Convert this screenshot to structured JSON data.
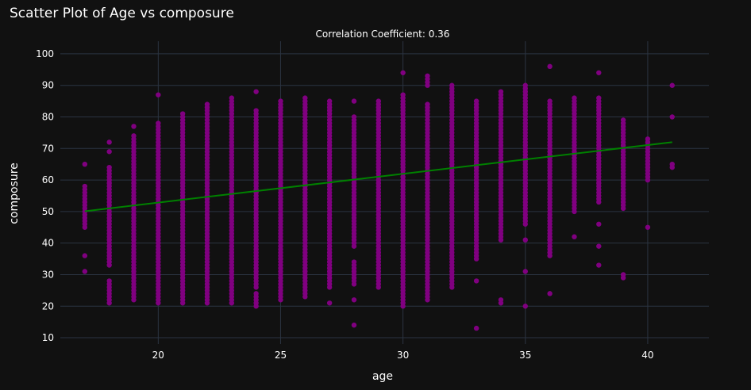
{
  "chart_data": {
    "type": "scatter",
    "title": "Scatter Plot of Age vs composure",
    "subtitle": "Correlation Coefficient: 0.36",
    "xlabel": "age",
    "ylabel": "composure",
    "xlim": [
      16,
      42.5
    ],
    "ylim": [
      8,
      104
    ],
    "x_ticks": [
      20,
      25,
      30,
      35,
      40
    ],
    "y_ticks": [
      10,
      20,
      30,
      40,
      50,
      60,
      70,
      80,
      90,
      100
    ],
    "grid": true,
    "colors": {
      "background": "#111111",
      "grid": "#2b3442",
      "points": "#800080",
      "trendline": "#008000",
      "text": "#ffffff"
    },
    "series": [
      {
        "type": "points",
        "ranges": [
          [
            17,
            45,
            58
          ],
          [
            17,
            65,
            65
          ],
          [
            17,
            36,
            36
          ],
          [
            17,
            31,
            31
          ],
          [
            18,
            33,
            64
          ],
          [
            18,
            72,
            72
          ],
          [
            18,
            69,
            69
          ],
          [
            18,
            21,
            28
          ],
          [
            19,
            22,
            74
          ],
          [
            19,
            77,
            77
          ],
          [
            20,
            22,
            78
          ],
          [
            20,
            87,
            87
          ],
          [
            20,
            21,
            21
          ],
          [
            21,
            21,
            81
          ],
          [
            22,
            21,
            84
          ],
          [
            23,
            21,
            86
          ],
          [
            24,
            26,
            82
          ],
          [
            24,
            88,
            88
          ],
          [
            24,
            20,
            24
          ],
          [
            25,
            22,
            85
          ],
          [
            26,
            23,
            86
          ],
          [
            27,
            26,
            85
          ],
          [
            27,
            21,
            21
          ],
          [
            28,
            39,
            80
          ],
          [
            28,
            85,
            85
          ],
          [
            28,
            27,
            34
          ],
          [
            28,
            22,
            22
          ],
          [
            28,
            14,
            14
          ],
          [
            29,
            26,
            85
          ],
          [
            30,
            20,
            87
          ],
          [
            30,
            94,
            94
          ],
          [
            31,
            22,
            84
          ],
          [
            31,
            90,
            93
          ],
          [
            32,
            26,
            90
          ],
          [
            33,
            35,
            85
          ],
          [
            33,
            28,
            28
          ],
          [
            33,
            13,
            13
          ],
          [
            34,
            41,
            88
          ],
          [
            34,
            21,
            22
          ],
          [
            35,
            46,
            90
          ],
          [
            35,
            41,
            41
          ],
          [
            35,
            31,
            31
          ],
          [
            35,
            20,
            20
          ],
          [
            36,
            36,
            85
          ],
          [
            36,
            41,
            41
          ],
          [
            36,
            24,
            24
          ],
          [
            36,
            96,
            96
          ],
          [
            37,
            50,
            86
          ],
          [
            37,
            42,
            42
          ],
          [
            38,
            53,
            86
          ],
          [
            38,
            94,
            94
          ],
          [
            38,
            46,
            46
          ],
          [
            38,
            39,
            39
          ],
          [
            38,
            33,
            33
          ],
          [
            39,
            51,
            79
          ],
          [
            39,
            29,
            30
          ],
          [
            40,
            60,
            73
          ],
          [
            40,
            45,
            45
          ],
          [
            41,
            64,
            65
          ],
          [
            41,
            80,
            80
          ],
          [
            41,
            90,
            90
          ]
        ]
      },
      {
        "type": "trendline",
        "x": [
          17,
          41
        ],
        "y": [
          50.1,
          72.0
        ]
      }
    ]
  }
}
